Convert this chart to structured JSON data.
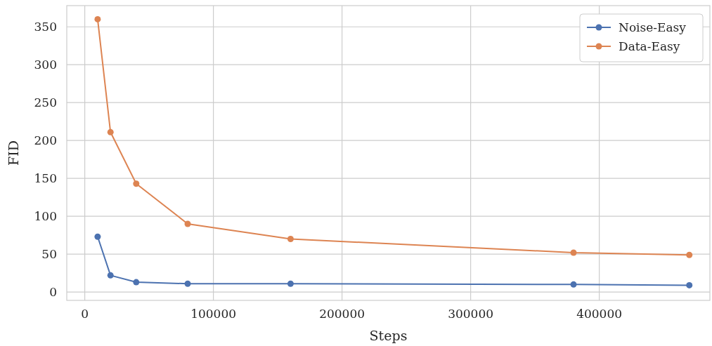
{
  "chart_data": {
    "type": "line",
    "xlabel": "Steps",
    "ylabel": "FID",
    "x": [
      10000,
      20000,
      40000,
      80000,
      160000,
      380000,
      470000
    ],
    "series": [
      {
        "name": "Noise-Easy",
        "color": "#4c72b0",
        "values": [
          73,
          22,
          13,
          11,
          11,
          10,
          9
        ]
      },
      {
        "name": "Data-Easy",
        "color": "#dd8452",
        "values": [
          360,
          211,
          143,
          90,
          70,
          52,
          49
        ]
      }
    ],
    "xlim": [
      -14000,
      486000
    ],
    "xticks": [
      0,
      100000,
      200000,
      300000,
      400000
    ],
    "ylim": [
      -11,
      378
    ],
    "yticks": [
      0,
      50,
      100,
      150,
      200,
      250,
      300,
      350
    ],
    "grid": true,
    "legend": "top right",
    "marker": "circle",
    "line_style": "solid"
  }
}
